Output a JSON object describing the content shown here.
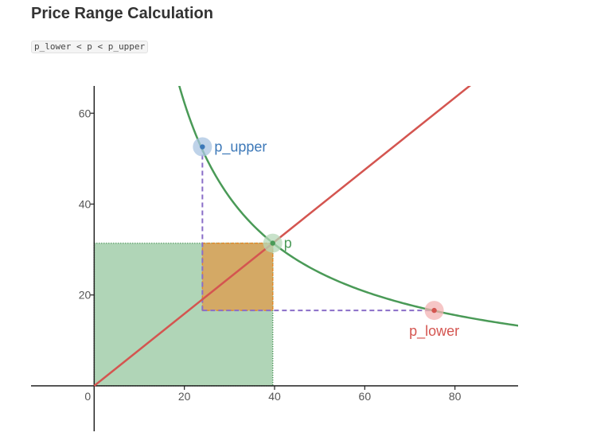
{
  "header": {
    "title": "Price Range Calculation",
    "formula": "p_lower < p < p_upper"
  },
  "chart_data": {
    "type": "line",
    "title": "Price Range Calculation",
    "xlabel": "",
    "ylabel": "",
    "xlim": [
      -14,
      94
    ],
    "ylim": [
      -10,
      66
    ],
    "grid": false,
    "x_ticks": [
      0,
      20,
      40,
      60,
      80
    ],
    "y_ticks": [
      20,
      40,
      60
    ],
    "series": [
      {
        "color": "#4a9a57",
        "kind": "curve",
        "k": 1246
      },
      {
        "color": "#d45550",
        "kind": "line",
        "slope": 0.7929
      }
    ],
    "points": [
      {
        "label": "p_upper",
        "x": 24,
        "y": 52.6,
        "color": "#3c78b8",
        "halo": "#a9c4e2"
      },
      {
        "label": "p",
        "x": 39.6,
        "y": 31.4,
        "color": "#4a9a57",
        "halo": "#b6d8b8"
      },
      {
        "label": "p_lower",
        "x": 75.4,
        "y": 16.6,
        "color": "#d45550",
        "halo": "#f3b3b3"
      }
    ],
    "regions": [
      {
        "x": [
          0,
          39.6
        ],
        "y": [
          0,
          31.4
        ],
        "color": "#5aa768"
      },
      {
        "x": [
          24,
          39.6
        ],
        "y": [
          16.6,
          31.4
        ],
        "color": "#d6a660"
      }
    ]
  }
}
